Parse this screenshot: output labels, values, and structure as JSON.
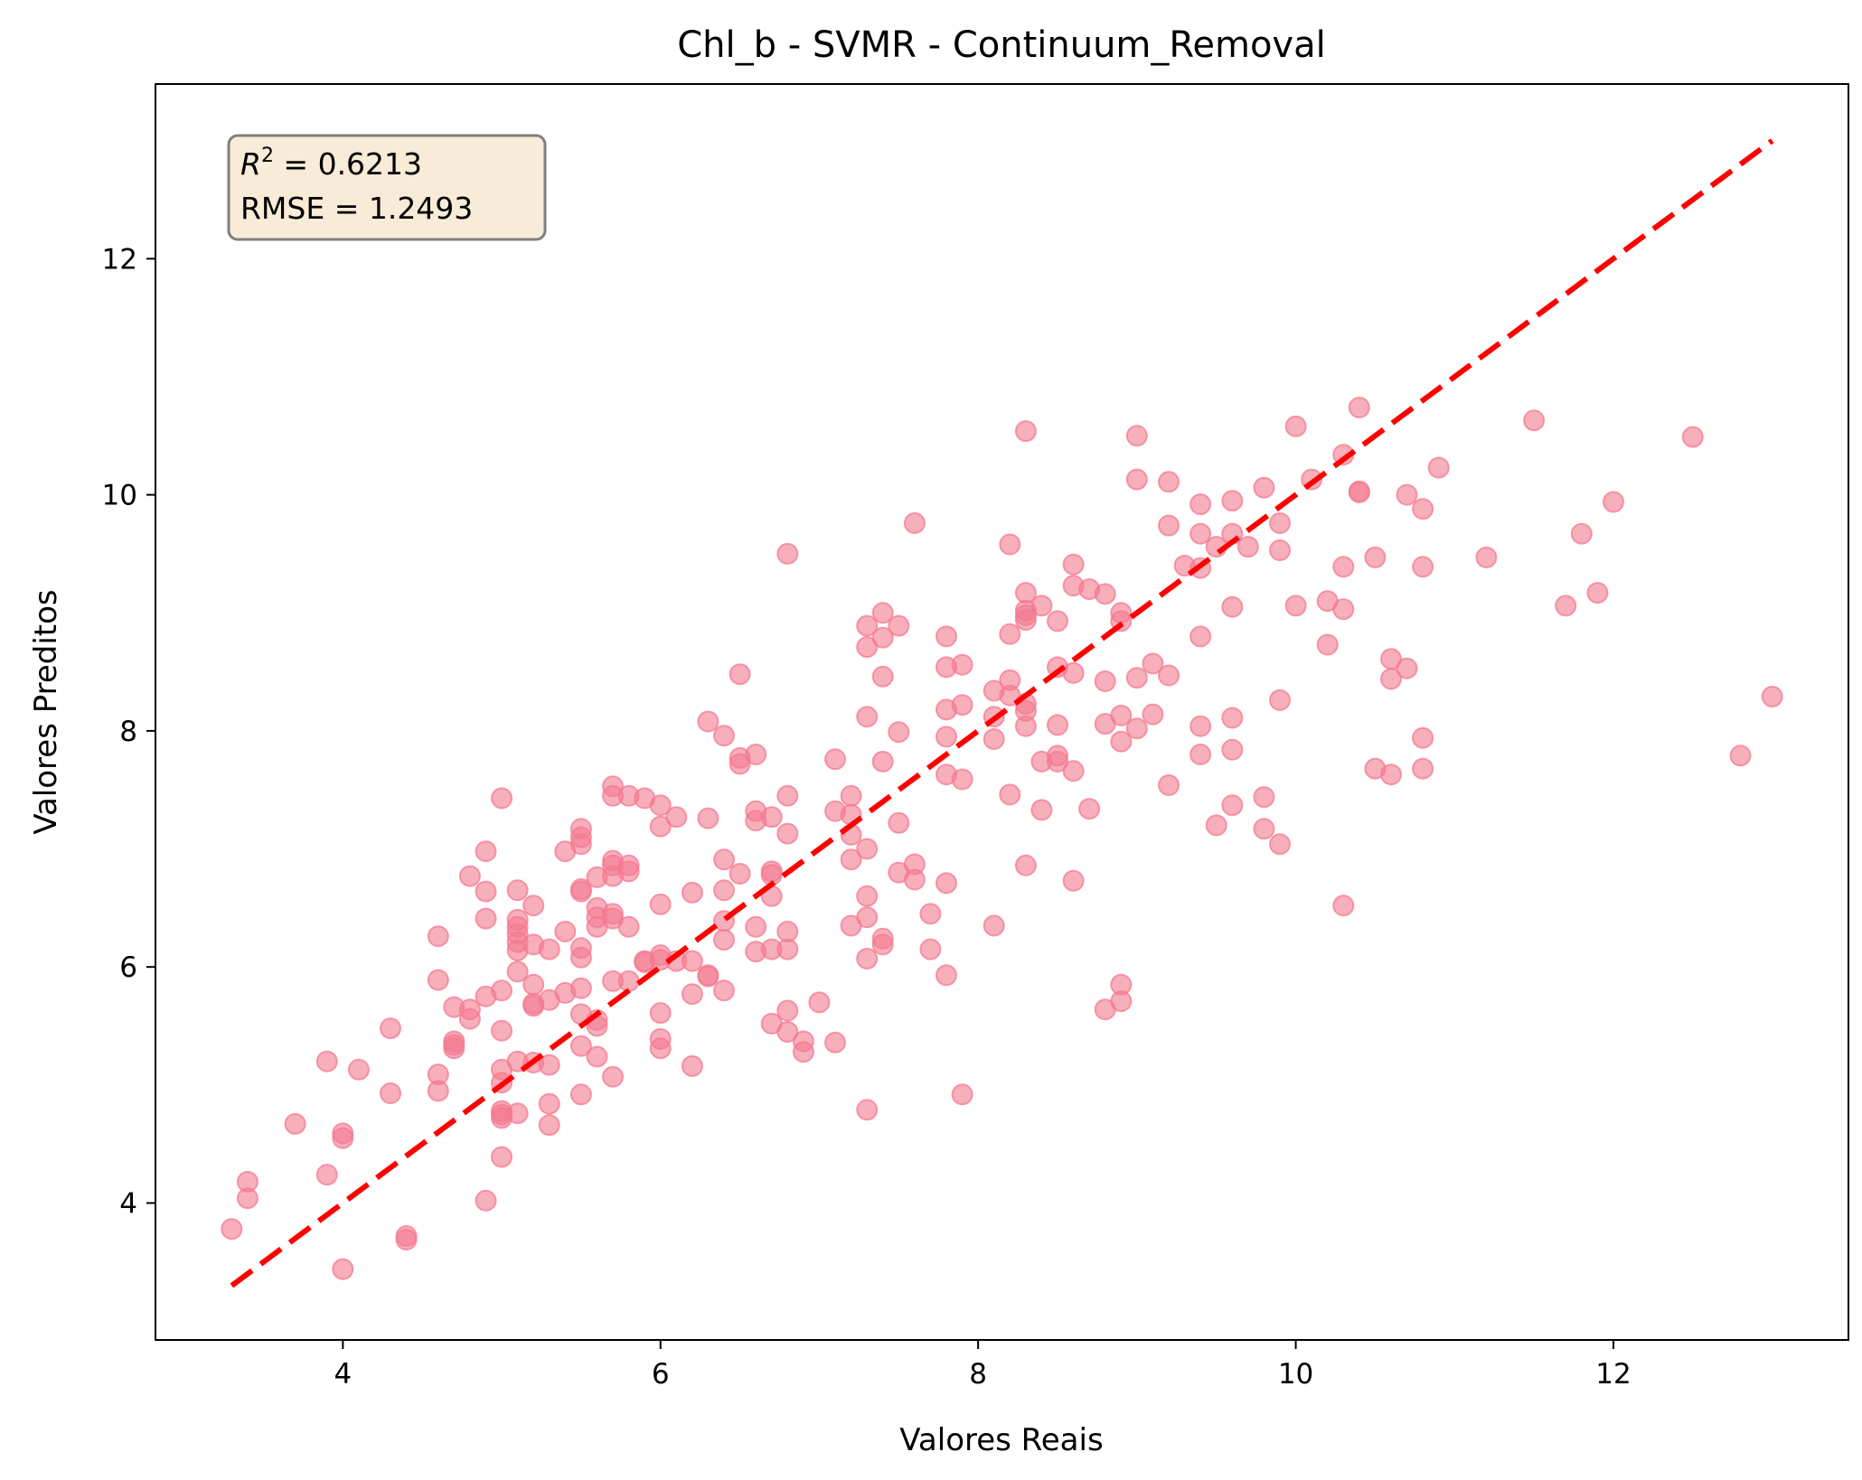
{
  "chart_data": {
    "type": "scatter",
    "title": "Chl_b - SVMR - Continuum_Removal",
    "xlabel": "Valores Reais",
    "ylabel": "Valores Preditos",
    "xlim": [
      2.82,
      13.48
    ],
    "ylim": [
      2.84,
      13.48
    ],
    "xticks": [
      4,
      6,
      8,
      10,
      12
    ],
    "yticks": [
      4,
      6,
      8,
      10,
      12
    ],
    "grid": false,
    "annotation": {
      "r2_label": "R",
      "r2_sup": "2",
      "r2_value": " = 0.6213",
      "rmse": "RMSE = 1.2493",
      "position": "top-left"
    },
    "colors": {
      "points": "#f47a90",
      "reference_line": "#ff0000",
      "box_fill": "#f8ebd7",
      "box_edge": "#7f7f7f"
    },
    "reference_line": {
      "x": [
        3.3,
        13.0
      ],
      "y": [
        3.3,
        13.0
      ]
    },
    "points": [
      [
        3.3,
        3.78
      ],
      [
        3.4,
        4.18
      ],
      [
        3.4,
        4.04
      ],
      [
        3.7,
        4.67
      ],
      [
        3.9,
        5.2
      ],
      [
        3.9,
        4.24
      ],
      [
        4.0,
        4.59
      ],
      [
        4.0,
        4.55
      ],
      [
        4.0,
        3.44
      ],
      [
        4.1,
        5.13
      ],
      [
        4.3,
        5.48
      ],
      [
        4.3,
        4.93
      ],
      [
        4.4,
        3.72
      ],
      [
        4.4,
        3.69
      ],
      [
        4.6,
        6.26
      ],
      [
        4.6,
        5.89
      ],
      [
        4.6,
        5.09
      ],
      [
        4.6,
        4.95
      ],
      [
        4.7,
        5.66
      ],
      [
        4.7,
        5.37
      ],
      [
        4.7,
        5.34
      ],
      [
        4.7,
        5.31
      ],
      [
        4.8,
        6.77
      ],
      [
        4.8,
        5.64
      ],
      [
        4.8,
        5.56
      ],
      [
        4.9,
        6.98
      ],
      [
        4.9,
        6.64
      ],
      [
        4.9,
        6.41
      ],
      [
        4.9,
        5.75
      ],
      [
        4.9,
        4.02
      ],
      [
        5.0,
        7.43
      ],
      [
        5.0,
        5.8
      ],
      [
        5.0,
        5.46
      ],
      [
        5.0,
        5.13
      ],
      [
        5.0,
        5.02
      ],
      [
        5.0,
        4.78
      ],
      [
        5.0,
        4.75
      ],
      [
        5.0,
        4.72
      ],
      [
        5.0,
        4.39
      ],
      [
        5.1,
        6.65
      ],
      [
        5.1,
        6.4
      ],
      [
        5.1,
        6.34
      ],
      [
        5.1,
        6.28
      ],
      [
        5.1,
        6.21
      ],
      [
        5.1,
        6.14
      ],
      [
        5.1,
        5.96
      ],
      [
        5.1,
        5.2
      ],
      [
        5.1,
        4.76
      ],
      [
        5.2,
        6.52
      ],
      [
        5.2,
        6.19
      ],
      [
        5.2,
        5.85
      ],
      [
        5.2,
        5.69
      ],
      [
        5.2,
        5.67
      ],
      [
        5.2,
        5.19
      ],
      [
        5.3,
        6.15
      ],
      [
        5.3,
        5.72
      ],
      [
        5.3,
        5.17
      ],
      [
        5.3,
        4.84
      ],
      [
        5.3,
        4.66
      ],
      [
        5.4,
        6.98
      ],
      [
        5.4,
        6.3
      ],
      [
        5.4,
        5.78
      ],
      [
        5.5,
        7.17
      ],
      [
        5.5,
        7.1
      ],
      [
        5.5,
        7.04
      ],
      [
        5.5,
        6.66
      ],
      [
        5.5,
        6.64
      ],
      [
        5.5,
        6.16
      ],
      [
        5.5,
        6.08
      ],
      [
        5.5,
        5.82
      ],
      [
        5.5,
        5.6
      ],
      [
        5.5,
        5.33
      ],
      [
        5.5,
        4.92
      ],
      [
        5.6,
        6.76
      ],
      [
        5.6,
        6.5
      ],
      [
        5.6,
        6.42
      ],
      [
        5.6,
        6.34
      ],
      [
        5.6,
        5.55
      ],
      [
        5.6,
        5.5
      ],
      [
        5.6,
        5.24
      ],
      [
        5.7,
        7.53
      ],
      [
        5.7,
        7.45
      ],
      [
        5.7,
        6.9
      ],
      [
        5.7,
        6.86
      ],
      [
        5.7,
        6.77
      ],
      [
        5.7,
        6.45
      ],
      [
        5.7,
        6.41
      ],
      [
        5.7,
        5.88
      ],
      [
        5.7,
        5.07
      ],
      [
        5.8,
        7.45
      ],
      [
        5.8,
        6.86
      ],
      [
        5.8,
        6.81
      ],
      [
        5.8,
        6.34
      ],
      [
        5.8,
        5.88
      ],
      [
        5.9,
        7.43
      ],
      [
        5.9,
        6.05
      ],
      [
        5.9,
        6.04
      ],
      [
        6.0,
        7.37
      ],
      [
        6.0,
        7.19
      ],
      [
        6.0,
        6.53
      ],
      [
        6.0,
        6.1
      ],
      [
        6.0,
        6.06
      ],
      [
        6.0,
        5.61
      ],
      [
        6.0,
        5.39
      ],
      [
        6.0,
        5.31
      ],
      [
        6.1,
        7.27
      ],
      [
        6.1,
        6.05
      ],
      [
        6.2,
        6.63
      ],
      [
        6.2,
        6.05
      ],
      [
        6.2,
        5.77
      ],
      [
        6.2,
        5.16
      ],
      [
        6.3,
        8.08
      ],
      [
        6.3,
        7.26
      ],
      [
        6.3,
        5.93
      ],
      [
        6.3,
        5.92
      ],
      [
        6.4,
        7.96
      ],
      [
        6.4,
        6.91
      ],
      [
        6.4,
        6.65
      ],
      [
        6.4,
        6.39
      ],
      [
        6.4,
        6.23
      ],
      [
        6.4,
        5.8
      ],
      [
        6.5,
        8.48
      ],
      [
        6.5,
        7.77
      ],
      [
        6.5,
        7.72
      ],
      [
        6.5,
        6.79
      ],
      [
        6.6,
        7.8
      ],
      [
        6.6,
        7.32
      ],
      [
        6.6,
        7.24
      ],
      [
        6.6,
        6.34
      ],
      [
        6.6,
        6.13
      ],
      [
        6.7,
        7.27
      ],
      [
        6.7,
        6.81
      ],
      [
        6.7,
        6.78
      ],
      [
        6.7,
        6.6
      ],
      [
        6.7,
        6.15
      ],
      [
        6.7,
        5.52
      ],
      [
        6.8,
        9.5
      ],
      [
        6.8,
        7.45
      ],
      [
        6.8,
        7.13
      ],
      [
        6.8,
        6.3
      ],
      [
        6.8,
        6.15
      ],
      [
        6.8,
        5.63
      ],
      [
        6.8,
        5.45
      ],
      [
        6.9,
        5.37
      ],
      [
        6.9,
        5.28
      ],
      [
        7.0,
        5.7
      ],
      [
        7.1,
        7.76
      ],
      [
        7.1,
        7.32
      ],
      [
        7.1,
        5.36
      ],
      [
        7.2,
        7.45
      ],
      [
        7.2,
        7.29
      ],
      [
        7.2,
        7.12
      ],
      [
        7.2,
        6.91
      ],
      [
        7.2,
        6.35
      ],
      [
        7.3,
        8.89
      ],
      [
        7.3,
        8.71
      ],
      [
        7.3,
        8.12
      ],
      [
        7.3,
        7.0
      ],
      [
        7.3,
        6.6
      ],
      [
        7.3,
        6.42
      ],
      [
        7.3,
        6.07
      ],
      [
        7.3,
        4.79
      ],
      [
        7.4,
        9.0
      ],
      [
        7.4,
        8.79
      ],
      [
        7.4,
        8.46
      ],
      [
        7.4,
        7.74
      ],
      [
        7.4,
        6.24
      ],
      [
        7.4,
        6.19
      ],
      [
        7.5,
        8.89
      ],
      [
        7.5,
        7.99
      ],
      [
        7.5,
        7.22
      ],
      [
        7.5,
        6.8
      ],
      [
        7.6,
        9.76
      ],
      [
        7.6,
        6.87
      ],
      [
        7.6,
        6.74
      ],
      [
        7.7,
        6.45
      ],
      [
        7.7,
        6.15
      ],
      [
        7.8,
        8.8
      ],
      [
        7.8,
        8.54
      ],
      [
        7.8,
        8.18
      ],
      [
        7.8,
        7.95
      ],
      [
        7.8,
        7.63
      ],
      [
        7.8,
        6.71
      ],
      [
        7.8,
        5.93
      ],
      [
        7.9,
        8.56
      ],
      [
        7.9,
        8.22
      ],
      [
        7.9,
        7.59
      ],
      [
        7.9,
        4.92
      ],
      [
        8.1,
        8.34
      ],
      [
        8.1,
        8.12
      ],
      [
        8.1,
        7.93
      ],
      [
        8.1,
        6.35
      ],
      [
        8.2,
        9.58
      ],
      [
        8.2,
        8.82
      ],
      [
        8.2,
        8.43
      ],
      [
        8.2,
        8.3
      ],
      [
        8.2,
        7.46
      ],
      [
        8.3,
        10.54
      ],
      [
        8.3,
        9.17
      ],
      [
        8.3,
        9.02
      ],
      [
        8.3,
        8.98
      ],
      [
        8.3,
        8.94
      ],
      [
        8.3,
        8.23
      ],
      [
        8.3,
        8.17
      ],
      [
        8.3,
        8.04
      ],
      [
        8.3,
        6.86
      ],
      [
        8.4,
        9.06
      ],
      [
        8.4,
        7.74
      ],
      [
        8.4,
        7.33
      ],
      [
        8.5,
        8.93
      ],
      [
        8.5,
        8.54
      ],
      [
        8.5,
        8.05
      ],
      [
        8.5,
        7.79
      ],
      [
        8.5,
        7.74
      ],
      [
        8.6,
        9.41
      ],
      [
        8.6,
        9.23
      ],
      [
        8.6,
        8.49
      ],
      [
        8.6,
        7.66
      ],
      [
        8.6,
        6.73
      ],
      [
        8.7,
        9.2
      ],
      [
        8.7,
        7.34
      ],
      [
        8.8,
        9.16
      ],
      [
        8.8,
        8.42
      ],
      [
        8.8,
        8.06
      ],
      [
        8.8,
        5.64
      ],
      [
        8.9,
        9.0
      ],
      [
        8.9,
        8.93
      ],
      [
        8.9,
        8.13
      ],
      [
        8.9,
        7.91
      ],
      [
        8.9,
        5.85
      ],
      [
        8.9,
        5.71
      ],
      [
        9.0,
        10.5
      ],
      [
        9.0,
        10.13
      ],
      [
        9.0,
        8.45
      ],
      [
        9.0,
        8.02
      ],
      [
        9.1,
        8.57
      ],
      [
        9.1,
        8.14
      ],
      [
        9.2,
        10.11
      ],
      [
        9.2,
        9.74
      ],
      [
        9.2,
        8.47
      ],
      [
        9.2,
        7.54
      ],
      [
        9.3,
        9.4
      ],
      [
        9.4,
        9.92
      ],
      [
        9.4,
        9.67
      ],
      [
        9.4,
        9.38
      ],
      [
        9.4,
        8.8
      ],
      [
        9.4,
        8.04
      ],
      [
        9.4,
        7.8
      ],
      [
        9.5,
        9.56
      ],
      [
        9.5,
        7.2
      ],
      [
        9.6,
        9.95
      ],
      [
        9.6,
        9.67
      ],
      [
        9.6,
        9.05
      ],
      [
        9.6,
        8.11
      ],
      [
        9.6,
        7.84
      ],
      [
        9.6,
        7.37
      ],
      [
        9.7,
        9.56
      ],
      [
        9.8,
        10.06
      ],
      [
        9.8,
        7.44
      ],
      [
        9.8,
        7.17
      ],
      [
        9.9,
        9.76
      ],
      [
        9.9,
        9.53
      ],
      [
        9.9,
        8.26
      ],
      [
        9.9,
        7.04
      ],
      [
        10.0,
        10.58
      ],
      [
        10.0,
        9.06
      ],
      [
        10.1,
        10.13
      ],
      [
        10.2,
        9.1
      ],
      [
        10.2,
        8.73
      ],
      [
        10.3,
        10.34
      ],
      [
        10.3,
        9.39
      ],
      [
        10.3,
        9.03
      ],
      [
        10.3,
        6.52
      ],
      [
        10.4,
        10.74
      ],
      [
        10.4,
        10.03
      ],
      [
        10.4,
        10.02
      ],
      [
        10.5,
        9.47
      ],
      [
        10.5,
        7.68
      ],
      [
        10.6,
        8.61
      ],
      [
        10.6,
        8.44
      ],
      [
        10.6,
        7.63
      ],
      [
        10.7,
        10.0
      ],
      [
        10.7,
        8.53
      ],
      [
        10.8,
        9.88
      ],
      [
        10.8,
        9.39
      ],
      [
        10.8,
        7.94
      ],
      [
        10.8,
        7.68
      ],
      [
        10.9,
        10.23
      ],
      [
        11.2,
        9.47
      ],
      [
        11.5,
        10.63
      ],
      [
        11.7,
        9.06
      ],
      [
        11.8,
        9.67
      ],
      [
        11.9,
        9.17
      ],
      [
        12.0,
        9.94
      ],
      [
        12.5,
        10.49
      ],
      [
        12.8,
        7.79
      ],
      [
        13.0,
        8.29
      ]
    ]
  }
}
